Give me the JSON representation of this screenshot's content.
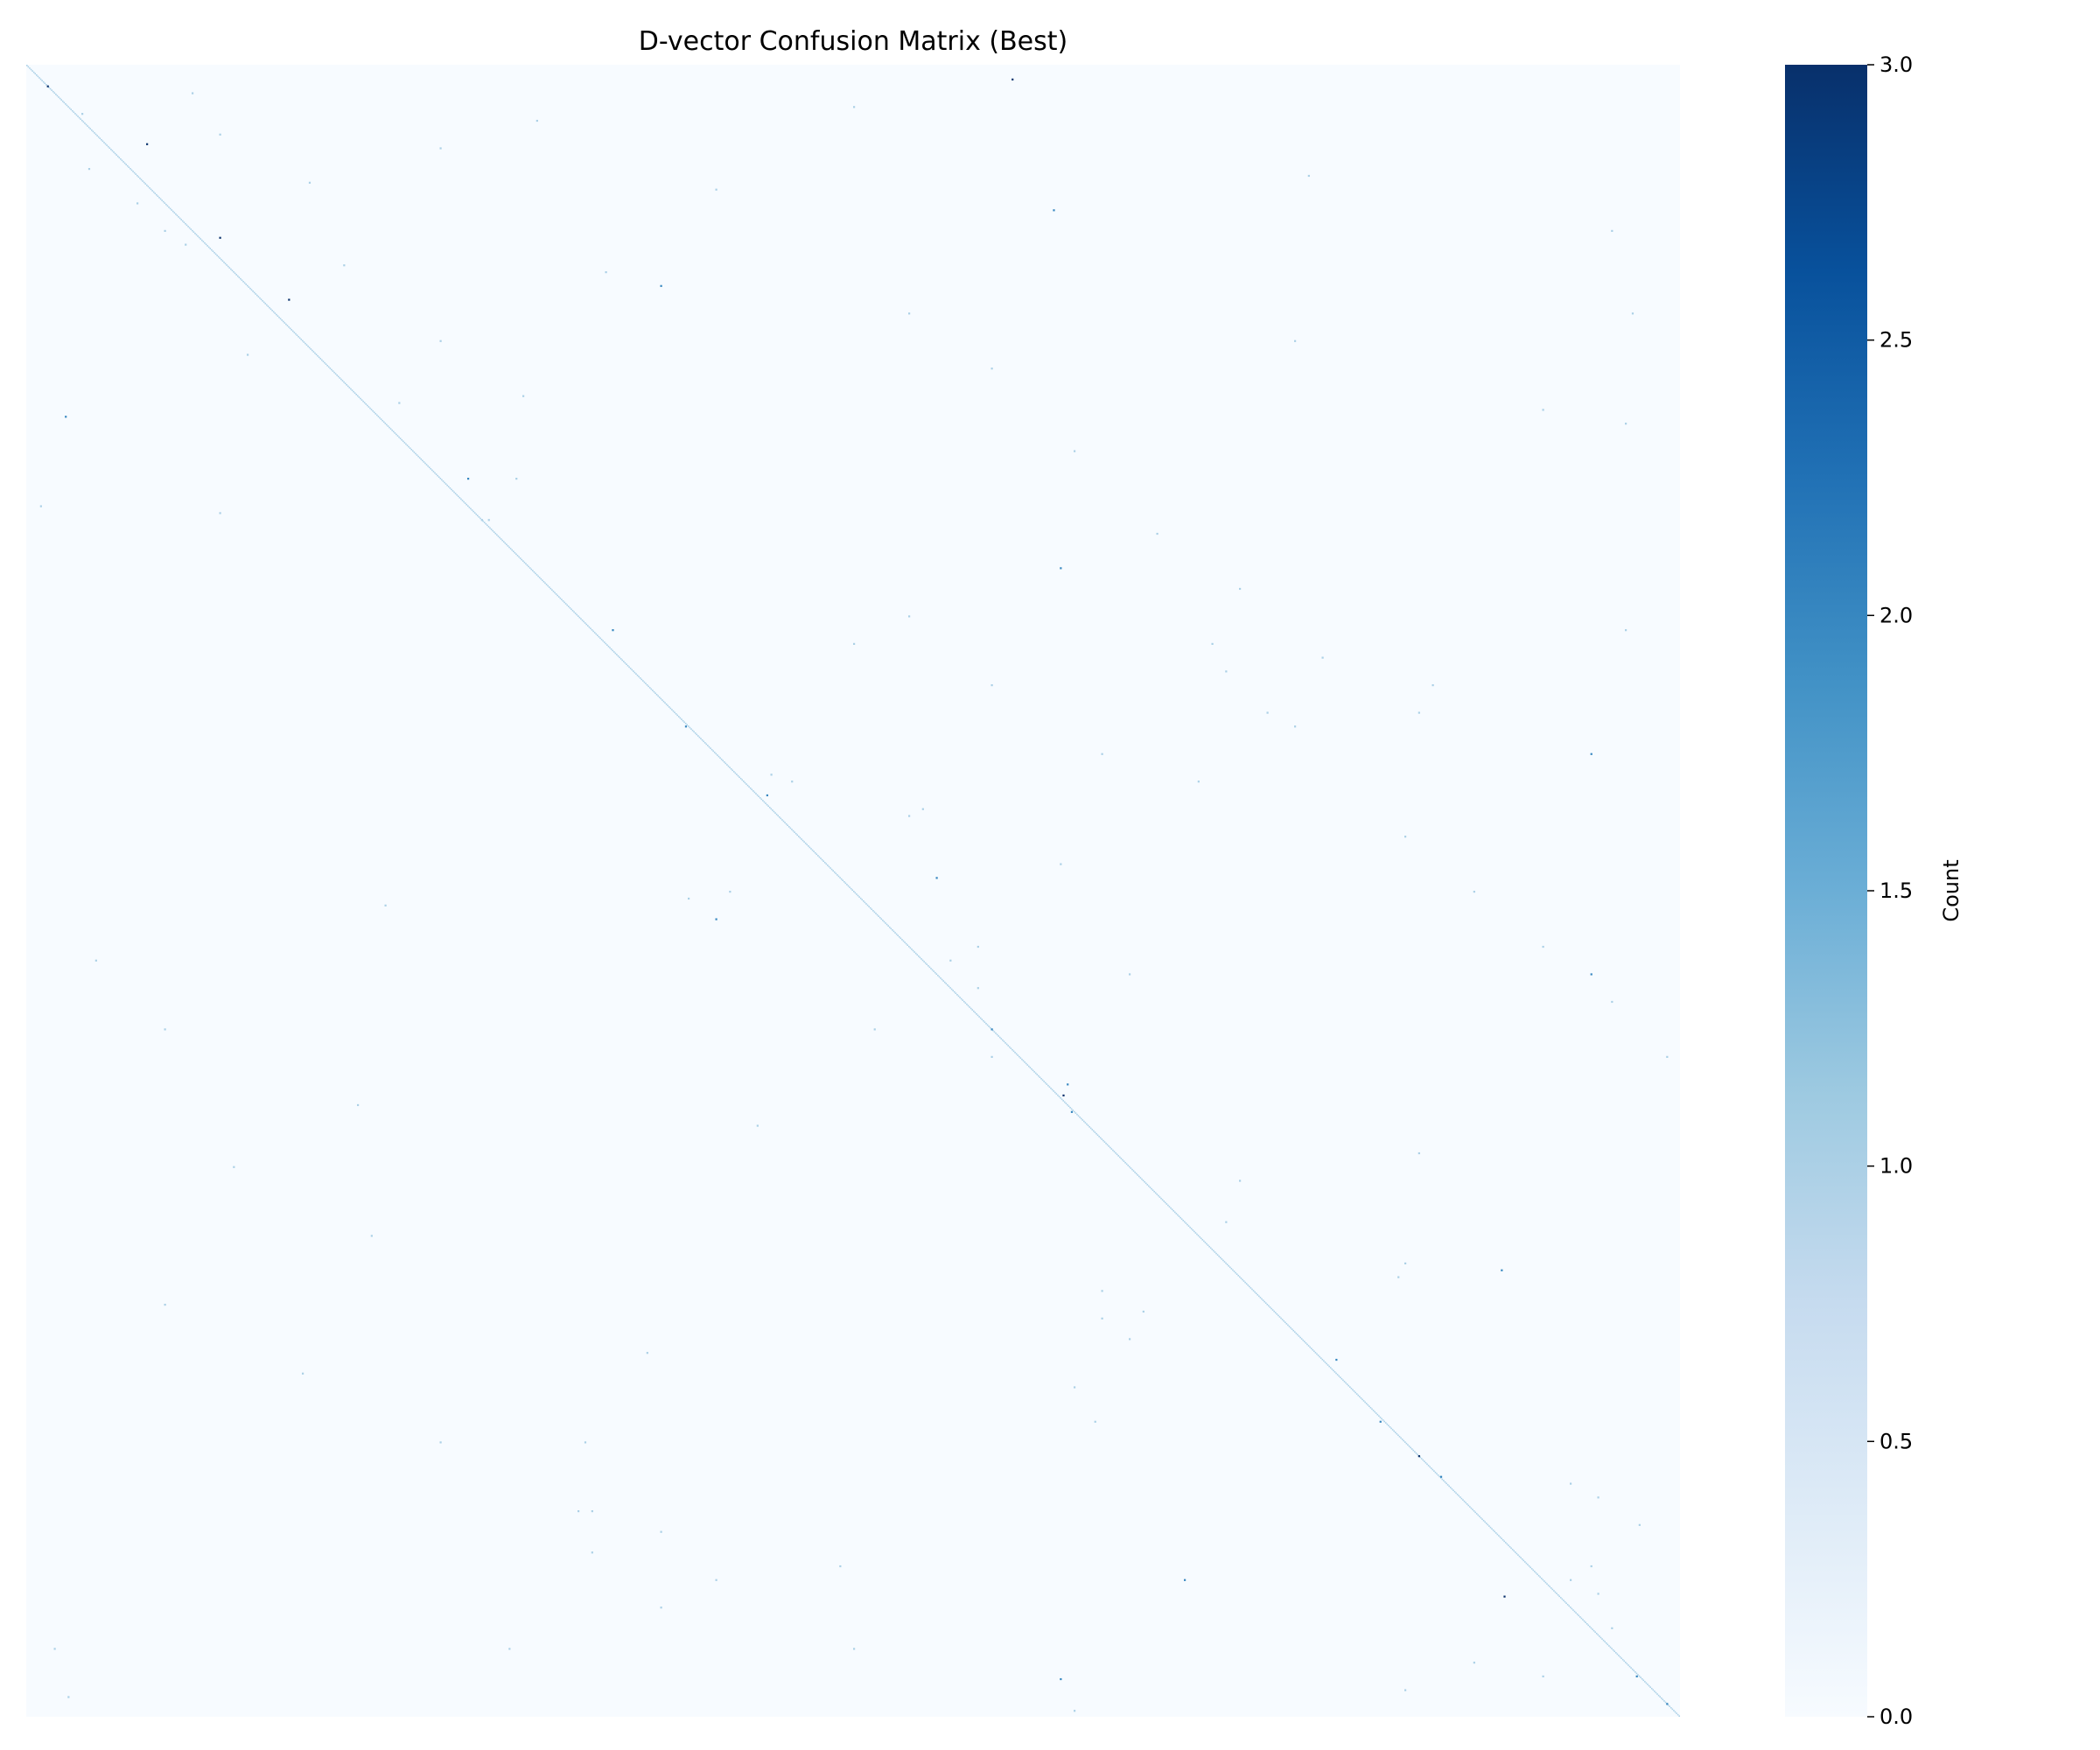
{
  "chart_data": {
    "type": "heatmap",
    "title": "D-vector Confusion Matrix (Best)",
    "xlabel": "",
    "ylabel": "",
    "matrix_size": 1200,
    "colormap": "Blues",
    "colormap_range": [
      "#f7fbff",
      "#08306b"
    ],
    "value_range": [
      0,
      3
    ],
    "grid": false,
    "colorbar": {
      "label": "Count",
      "ticks": [
        0.0,
        0.5,
        1.0,
        1.5,
        2.0,
        2.5,
        3.0
      ],
      "tick_labels": [
        "0.0",
        "0.5",
        "1.0",
        "1.5",
        "2.0",
        "2.5",
        "3.0"
      ],
      "position": "right"
    },
    "diagonal_value": 1,
    "cells": [
      [
        15,
        15,
        3
      ],
      [
        57,
        87,
        3
      ],
      [
        125,
        140,
        3
      ],
      [
        170,
        190,
        3
      ],
      [
        300,
        320,
        2
      ],
      [
        410,
        425,
        2
      ],
      [
        480,
        478,
        2
      ],
      [
        530,
        537,
        2
      ],
      [
        700,
        700,
        2
      ],
      [
        748,
        752,
        3
      ],
      [
        760,
        758,
        2
      ],
      [
        1010,
        1010,
        3
      ],
      [
        1025,
        1026,
        2
      ],
      [
        1170,
        1168,
        2
      ],
      [
        1190,
        1190,
        2
      ],
      [
        940,
        950,
        2
      ],
      [
        985,
        982,
        2
      ],
      [
        10,
        715,
        3
      ],
      [
        105,
        745,
        2
      ],
      [
        365,
        750,
        2
      ],
      [
        740,
        755,
        2
      ],
      [
        1112,
        1072,
        3
      ],
      [
        590,
        660,
        2
      ],
      [
        620,
        500,
        2
      ],
      [
        500,
        1135,
        2
      ],
      [
        660,
        1135,
        2
      ],
      [
        875,
        1070,
        2
      ],
      [
        1172,
        750,
        2
      ],
      [
        160,
        460,
        2
      ],
      [
        255,
        28,
        2
      ],
      [
        1100,
        840,
        2
      ],
      [
        100,
        80,
        1
      ],
      [
        120,
        100,
        1
      ],
      [
        130,
        115,
        1
      ],
      [
        145,
        230,
        1
      ],
      [
        50,
        140,
        1
      ],
      [
        85,
        205,
        1
      ],
      [
        200,
        300,
        1
      ],
      [
        245,
        270,
        1
      ],
      [
        210,
        160,
        1
      ],
      [
        240,
        360,
        1
      ],
      [
        60,
        300,
        1
      ],
      [
        40,
        370,
        1
      ],
      [
        20,
        120,
        1
      ],
      [
        35,
        40,
        1
      ],
      [
        75,
        45,
        1
      ],
      [
        300,
        355,
        1
      ],
      [
        320,
        10,
        1
      ],
      [
        325,
        140,
        1
      ],
      [
        330,
        330,
        1
      ],
      [
        330,
        335,
        1
      ],
      [
        80,
        930,
        1
      ],
      [
        120,
        1150,
        1
      ],
      [
        180,
        1165,
        1
      ],
      [
        200,
        920,
        1
      ],
      [
        250,
        1100,
        1
      ],
      [
        260,
        1160,
        1
      ],
      [
        410,
        1160,
        1
      ],
      [
        515,
        540,
        1
      ],
      [
        520,
        555,
        1
      ],
      [
        540,
        650,
        1
      ],
      [
        545,
        640,
        1
      ],
      [
        580,
        750,
        1
      ],
      [
        600,
        510,
        1
      ],
      [
        605,
        480,
        1
      ],
      [
        610,
        260,
        1
      ],
      [
        640,
        690,
        1
      ],
      [
        650,
        670,
        1
      ],
      [
        660,
        800,
        1
      ],
      [
        670,
        690,
        1
      ],
      [
        700,
        615,
        1
      ],
      [
        720,
        700,
        1
      ],
      [
        755,
        240,
        1
      ],
      [
        770,
        530,
        1
      ],
      [
        790,
        1010,
        1
      ],
      [
        810,
        880,
        1
      ],
      [
        840,
        870,
        1
      ],
      [
        870,
        1000,
        1
      ],
      [
        880,
        995,
        1
      ],
      [
        890,
        780,
        1
      ],
      [
        905,
        810,
        1
      ],
      [
        910,
        780,
        1
      ],
      [
        925,
        800,
        1
      ],
      [
        935,
        450,
        1
      ],
      [
        960,
        760,
        1
      ],
      [
        985,
        775,
        1
      ],
      [
        1000,
        405,
        1
      ],
      [
        1050,
        410,
        1
      ],
      [
        1065,
        460,
        1
      ],
      [
        1080,
        410,
        1
      ],
      [
        1090,
        590,
        1
      ],
      [
        1090,
        1135,
        1
      ],
      [
        1120,
        460,
        1
      ],
      [
        1135,
        1150,
        1
      ],
      [
        1150,
        350,
        1
      ],
      [
        1160,
        1050,
        1
      ],
      [
        1170,
        1100,
        1
      ],
      [
        1180,
        1000,
        1
      ],
      [
        1195,
        760,
        1
      ],
      [
        1150,
        20,
        1
      ],
      [
        1185,
        30,
        1
      ],
      [
        420,
        860,
        1
      ],
      [
        440,
        870,
        1
      ],
      [
        450,
        1020,
        1
      ],
      [
        470,
        900,
        1
      ],
      [
        480,
        920,
        1
      ],
      [
        1030,
        1120,
        1
      ],
      [
        1040,
        1140,
        1
      ],
      [
        1060,
        1170,
        1
      ],
      [
        1110,
        1140,
        1
      ],
      [
        1100,
        1120,
        1
      ],
      [
        400,
        640,
        1
      ],
      [
        420,
        600,
        1
      ],
      [
        450,
        700,
        1
      ],
      [
        500,
        780,
        1
      ],
      [
        520,
        850,
        1
      ],
      [
        560,
        1000,
        1
      ],
      [
        600,
        1050,
        1
      ],
      [
        640,
        1100,
        1
      ],
      [
        680,
        1150,
        1
      ],
      [
        720,
        1190,
        1
      ],
      [
        30,
        600,
        1
      ],
      [
        90,
        500,
        1
      ],
      [
        150,
        420,
        1
      ],
      [
        180,
        640,
        1
      ],
      [
        220,
        700,
        1
      ],
      [
        280,
        760,
        1
      ],
      [
        340,
        820,
        1
      ],
      [
        380,
        880,
        1
      ],
      [
        430,
        940,
        1
      ],
      [
        470,
        1010,
        1
      ],
      [
        900,
        100,
        1
      ],
      [
        950,
        200,
        1
      ],
      [
        1000,
        300,
        1
      ],
      [
        1050,
        400,
        1
      ],
      [
        1100,
        500,
        1
      ],
      [
        1150,
        600,
        1
      ],
      [
        800,
        150,
        1
      ],
      [
        850,
        250,
        1
      ],
      [
        700,
        100,
        1
      ],
      [
        650,
        50,
        1
      ]
    ]
  }
}
